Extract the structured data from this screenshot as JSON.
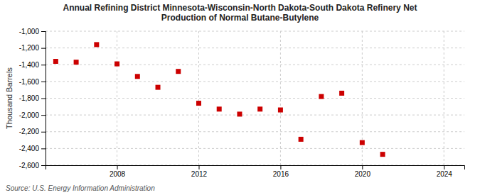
{
  "chart_data": {
    "type": "scatter",
    "title": "Annual Refining District Minnesota-Wisconsin-North Dakota-South Dakota Refinery Net\nProduction of Normal Butane-Butylene",
    "ylabel": "Thousand Barrels",
    "annotations": [
      "Source: U.S. Energy Information Administration"
    ],
    "x": [
      2005,
      2006,
      2007,
      2008,
      2009,
      2010,
      2011,
      2012,
      2013,
      2014,
      2015,
      2016,
      2017,
      2018,
      2019,
      2020,
      2021
    ],
    "values": [
      -1360,
      -1370,
      -1160,
      -1390,
      -1540,
      -1670,
      -1480,
      -1860,
      -1930,
      -1990,
      -1930,
      -1940,
      -2290,
      -1780,
      -1740,
      -2330,
      -2470
    ],
    "color": "#cc0000",
    "marker": "square",
    "xlim": [
      2004.5,
      2025
    ],
    "ylim": [
      -2600,
      -1000
    ],
    "xticks": [
      2008,
      2012,
      2016,
      2020,
      2024
    ],
    "yticks": [
      {
        "value": -1000,
        "label": "-1,000"
      },
      {
        "value": -1200,
        "label": "-1,200"
      },
      {
        "value": -1400,
        "label": "-1,400"
      },
      {
        "value": -1600,
        "label": "-1,600"
      },
      {
        "value": -1800,
        "label": "-1,800"
      },
      {
        "value": -2000,
        "label": "-2,000"
      },
      {
        "value": -2200,
        "label": "-2,200"
      },
      {
        "value": -2400,
        "label": "-2,400"
      },
      {
        "value": -2600,
        "label": "-2,600"
      }
    ],
    "grid": true
  }
}
